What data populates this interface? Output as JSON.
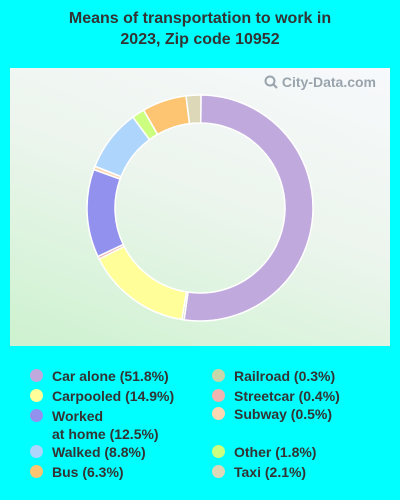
{
  "title": "Means of transportation to work in 2023, Zip code 10952",
  "watermark": "City-Data.com",
  "chart_data": {
    "type": "pie",
    "title": "Means of transportation to work in 2023, Zip code 10952",
    "slices": [
      {
        "name": "Car alone",
        "label": "Car alone (51.8%)",
        "value": 51.8,
        "color": "#c0aadd"
      },
      {
        "name": "Railroad",
        "label": "Railroad (0.3%)",
        "value": 0.3,
        "color": "#c8d7a9"
      },
      {
        "name": "Carpooled",
        "label": "Carpooled (14.9%)",
        "value": 14.9,
        "color": "#fffe99"
      },
      {
        "name": "Streetcar",
        "label": "Streetcar (0.4%)",
        "value": 0.4,
        "color": "#f0b5b0"
      },
      {
        "name": "Worked at home",
        "label": "Worked at home (12.5%)",
        "label_lines": [
          "Worked",
          "at home (12.5%)"
        ],
        "value": 12.5,
        "color": "#9292ee"
      },
      {
        "name": "Subway",
        "label": "Subway (0.5%)",
        "value": 0.5,
        "color": "#fdd8b2"
      },
      {
        "name": "Walked",
        "label": "Walked (8.8%)",
        "value": 8.8,
        "color": "#aed5fb"
      },
      {
        "name": "Other",
        "label": "Other (1.8%)",
        "value": 1.8,
        "color": "#ccff80"
      },
      {
        "name": "Bus",
        "label": "Bus (6.3%)",
        "value": 6.3,
        "color": "#fdc572"
      },
      {
        "name": "Taxi",
        "label": "Taxi (2.1%)",
        "value": 2.1,
        "color": "#ddd9b8"
      }
    ],
    "draw_order": [
      "Car alone",
      "Railroad",
      "Carpooled",
      "Streetcar",
      "Worked at home",
      "Subway",
      "Walked",
      "Other",
      "Bus",
      "Taxi"
    ],
    "legend_placement": "bottom"
  }
}
